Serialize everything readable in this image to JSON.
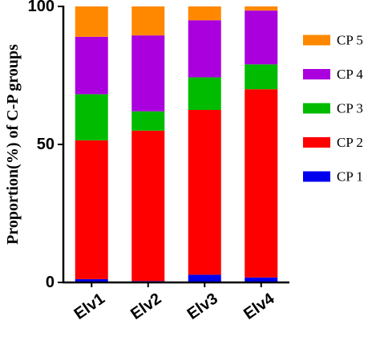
{
  "chart_data": {
    "type": "bar",
    "stacked": true,
    "title": "",
    "xlabel": "",
    "ylabel": "Proportion(%) of C-P groups",
    "ylim": [
      0,
      100
    ],
    "yticks": [
      0,
      50,
      100
    ],
    "categories": [
      "Elv1",
      "Elv2",
      "Elv3",
      "Elv4"
    ],
    "series": [
      {
        "name": "CP 1",
        "color": "#0000ee",
        "values": [
          1.2,
          0.5,
          2.8,
          1.8
        ]
      },
      {
        "name": "CP 2",
        "color": "#ff0000",
        "values": [
          50.3,
          54.5,
          59.7,
          68.2
        ]
      },
      {
        "name": "CP 3",
        "color": "#00bb00",
        "values": [
          16.7,
          7.0,
          11.8,
          9.0
        ]
      },
      {
        "name": "CP 4",
        "color": "#aa00dd",
        "values": [
          20.8,
          27.5,
          20.7,
          19.5
        ]
      },
      {
        "name": "CP 5",
        "color": "#ff8800",
        "values": [
          11.0,
          10.5,
          5.0,
          1.5
        ]
      }
    ],
    "legend": {
      "position": "right",
      "order": [
        "CP 5",
        "CP 4",
        "CP 3",
        "CP 2",
        "CP 1"
      ]
    },
    "grid": false
  }
}
